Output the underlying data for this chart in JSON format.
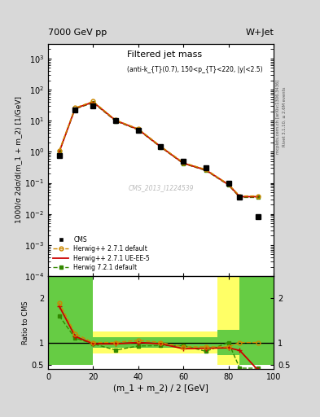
{
  "title_top": "7000 GeV pp",
  "title_right": "W+Jet",
  "plot_title": "Filtered jet mass",
  "plot_subtitle": "(anti-k_{T}(0.7), 150<p_{T}<220, |y|<2.5)",
  "ylabel_main": "1000/σ 2dσ/d(m_1 + m_2) [1/GeV]",
  "ylabel_ratio": "Ratio to CMS",
  "xlabel": "(m_1 + m_2) / 2 [GeV]",
  "watermark": "CMS_2013_I1224539",
  "right_label1": "mcplots.cern.ch [arXiv:1306.3436]",
  "right_label2": "Rivet 3.1.10, ≥ 2.6M events",
  "x_cms": [
    5,
    12,
    20,
    30,
    40,
    50,
    60,
    70,
    80,
    85,
    93
  ],
  "y_cms": [
    0.75,
    22,
    30,
    10,
    5,
    1.5,
    0.5,
    0.3,
    0.1,
    0.035,
    0.008
  ],
  "x_mc1": [
    5,
    12,
    20,
    30,
    40,
    50,
    60,
    70,
    80,
    85,
    93
  ],
  "y_mc1": [
    1.1,
    26,
    42,
    10.5,
    5.5,
    1.5,
    0.45,
    0.27,
    0.09,
    0.038,
    0.038
  ],
  "x_mc2": [
    5,
    12,
    20,
    30,
    40,
    50,
    60,
    70,
    80,
    85,
    93
  ],
  "y_mc2": [
    1.0,
    25,
    40,
    10.2,
    5.3,
    1.45,
    0.43,
    0.26,
    0.088,
    0.036,
    0.036
  ],
  "x_mc3": [
    5,
    12,
    20,
    30,
    40,
    50,
    60,
    70,
    80,
    85,
    93
  ],
  "y_mc3": [
    1.0,
    24,
    38,
    9.8,
    5.1,
    1.4,
    0.42,
    0.25,
    0.085,
    0.034,
    0.034
  ],
  "ratio_x": [
    5,
    12,
    20,
    30,
    40,
    50,
    60,
    70,
    80,
    85,
    93
  ],
  "ratio_y_mc1": [
    1.9,
    1.2,
    1.0,
    1.0,
    1.05,
    1.0,
    0.9,
    0.9,
    0.9,
    1.0,
    1.0
  ],
  "ratio_y_mc2": [
    1.82,
    1.14,
    0.97,
    0.97,
    1.0,
    0.97,
    0.86,
    0.87,
    0.88,
    0.82,
    0.38
  ],
  "ratio_y_mc3": [
    1.6,
    1.1,
    0.97,
    0.83,
    0.92,
    0.93,
    0.93,
    0.8,
    1.0,
    0.42,
    0.42
  ],
  "ylim_main": [
    0.0001,
    3000.0
  ],
  "ylim_ratio": [
    0.4,
    2.5
  ],
  "xlim": [
    0,
    100
  ],
  "color_mc1": "#cc8800",
  "color_mc2": "#cc0000",
  "color_mc3": "#338800",
  "color_cms": "#000000",
  "color_yellow": "#ffff66",
  "color_green": "#66cc44",
  "bg_color": "#ffffff"
}
